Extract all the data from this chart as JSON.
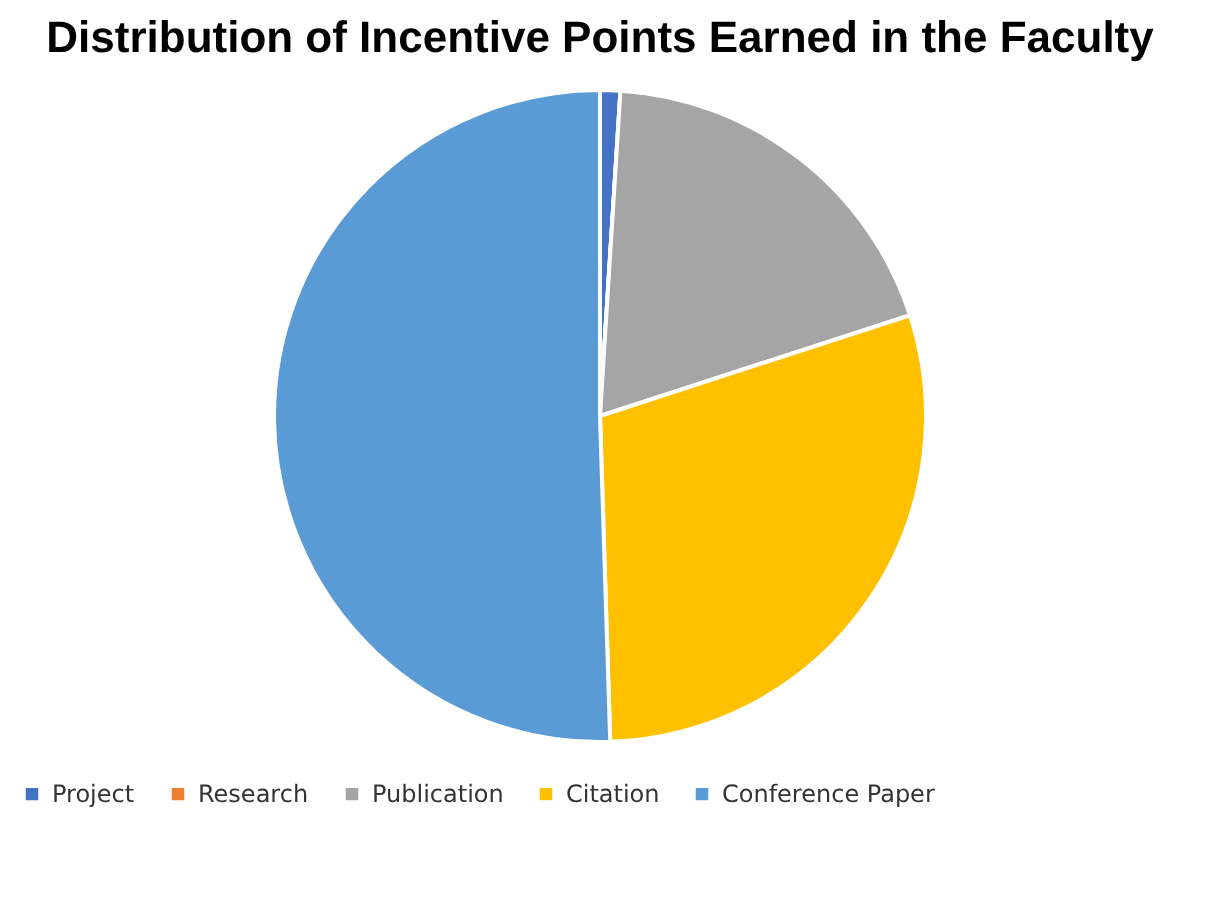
{
  "chart_data": {
    "type": "pie",
    "title": "Distribution of Incentive Points Earned in the Faculty",
    "categories": [
      "Project",
      "Research",
      "Publication",
      "Citation",
      "Conference Paper"
    ],
    "values": [
      1,
      0,
      19,
      29.5,
      50.5
    ],
    "colors": [
      "#4472c4",
      "#ed7d31",
      "#a5a5a5",
      "#ffc000",
      "#5b9bd5"
    ],
    "legend": "bottom"
  }
}
